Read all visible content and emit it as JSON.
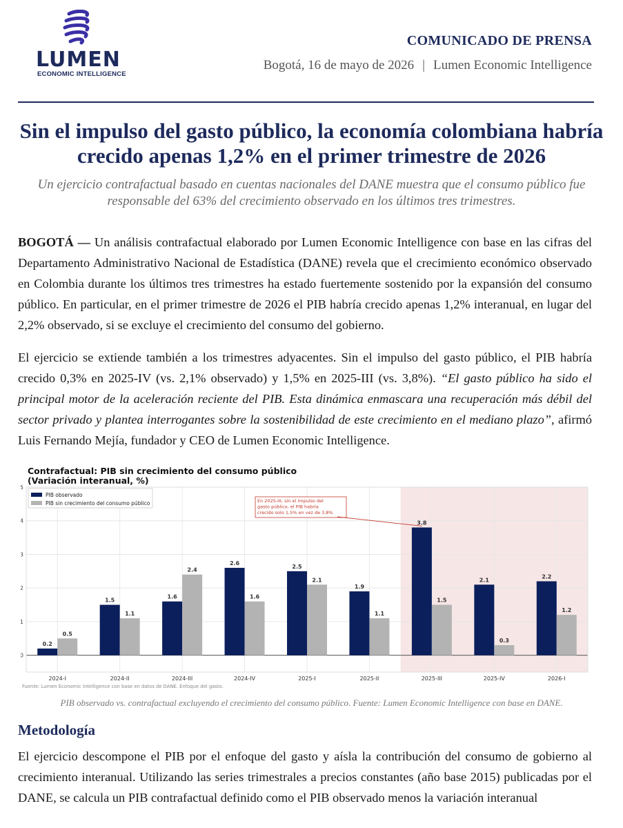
{
  "header": {
    "logo_text": "LUMEN",
    "logo_subtitle": "ECONOMIC INTELLIGENCE",
    "press_label": "COMUNICADO DE PRENSA",
    "date_place": "Bogotá, 16 de mayo de 2026",
    "separator": "|",
    "organization": "Lumen Economic Intelligence"
  },
  "article": {
    "headline": "Sin el impulso del gasto público, la economía colombiana habría crecido apenas 1,2% en el primer trimestre de 2026",
    "subheadline": "Un ejercicio contrafactual basado en cuentas nacionales del DANE muestra que el consumo público fue responsable del 63% del crecimiento observado en los últimos tres trimestres.",
    "p1_lead": "BOGOTÁ —",
    "p1_text": " Un análisis contrafactual elaborado por Lumen Economic Intelligence con base en las cifras del Departamento Administrativo Nacional de Estadística (DANE) revela que el crecimiento económico observado en Colombia durante los últimos tres trimestres ha estado fuertemente sostenido por la expansión del consumo público. En particular, en el primer trimestre de 2026 el PIB habría crecido apenas 1,2% interanual, en lugar del 2,2% observado, si se excluye el crecimiento del consumo del gobierno.",
    "p2_text": "El ejercicio se extiende también a los trimestres adyacentes. Sin el impulso del gasto público, el PIB habría crecido 0,3% en 2025-IV (vs. 2,1% observado) y 1,5% en 2025-III (vs. 3,8%). ",
    "p2_quote": "“El gasto público ha sido el principal motor de la aceleración reciente del PIB. Esta dinámica enmascara una recuperación más débil del sector privado y plantea interrogantes sobre la sostenibilidad de este crecimiento en el mediano plazo”",
    "p2_attribution": ", afirmó Luis Fernando Mejía, fundador y CEO de Lumen Economic Intelligence.",
    "caption": "PIB observado vs. contrafactual excluyendo el crecimiento del consumo público. Fuente: Lumen Economic Intelligence con base en DANE.",
    "methodology_title": "Metodología",
    "p3_text": "El ejercicio descompone el PIB por el enfoque del gasto y aísla la contribución del consumo de gobierno al crecimiento interanual. Utilizando las series trimestrales a precios constantes (año base 2015) publicadas por el DANE, se calcula un PIB contrafactual definido como el PIB observado menos la variación interanual"
  },
  "chart_data": {
    "type": "bar",
    "title": "Contrafactual: PIB sin crecimiento del consumo público",
    "subtitle": "(Variación interanual, %)",
    "categories": [
      "2024-I",
      "2024-II",
      "2024-III",
      "2024-IV",
      "2025-I",
      "2025-II",
      "2025-III",
      "2025-IV",
      "2026-I"
    ],
    "series": [
      {
        "name": "PIB observado",
        "values": [
          0.2,
          1.5,
          1.6,
          2.6,
          2.5,
          1.9,
          3.8,
          2.1,
          2.2
        ],
        "labels": [
          "0.2",
          "1.5",
          "1.6",
          "2.6",
          "2.5",
          "1.9",
          "3.8",
          "2.1",
          "2.2"
        ],
        "color": "#0b1f5c"
      },
      {
        "name": "PIB sin crecimiento del consumo público",
        "values": [
          0.5,
          1.1,
          2.4,
          1.6,
          2.1,
          1.1,
          1.5,
          0.3,
          1.2
        ],
        "labels": [
          "0.5",
          "1.1",
          "2.4",
          "1.6",
          "2.1",
          "1.1",
          "1.5",
          "0.3",
          "1.2"
        ],
        "color": "#b3b3b3"
      }
    ],
    "yticks": [
      "0",
      "1",
      "2",
      "3",
      "4",
      "5"
    ],
    "ylim": [
      -0.5,
      5
    ],
    "highlight_categories": [
      "2025-III",
      "2025-IV",
      "2026-I"
    ],
    "highlight_color": "#f7e6e6",
    "legend_position": "top-left",
    "grid": true,
    "annotation": {
      "lines": [
        "En 2025-III, sin el impulso del",
        "gasto público, el PIB habría",
        "crecido solo 1,5% en vez de 3,8%"
      ],
      "color": "#c0392b",
      "points_to_category": "2025-III"
    },
    "source": "Fuente: Lumen Economic Intelligence con base en datos de DANE. Enfoque del gasto."
  }
}
